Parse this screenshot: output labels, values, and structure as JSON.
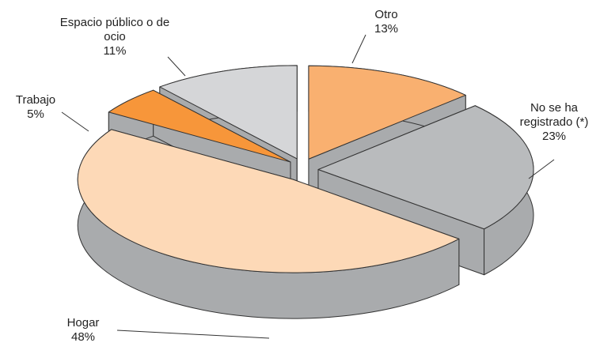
{
  "chart_data": {
    "type": "pie3d",
    "categories": [
      "Otro",
      "No se ha registrado (*)",
      "Hogar",
      "Trabajo",
      "Espacio público o de ocio"
    ],
    "values": [
      13,
      23,
      48,
      5,
      11
    ],
    "value_labels": [
      "13%",
      "23%",
      "48%",
      "5%",
      "11%"
    ],
    "colors": [
      "#f9b070",
      "#b9bbbd",
      "#fdd9b7",
      "#f7963a",
      "#d5d6d8"
    ]
  }
}
